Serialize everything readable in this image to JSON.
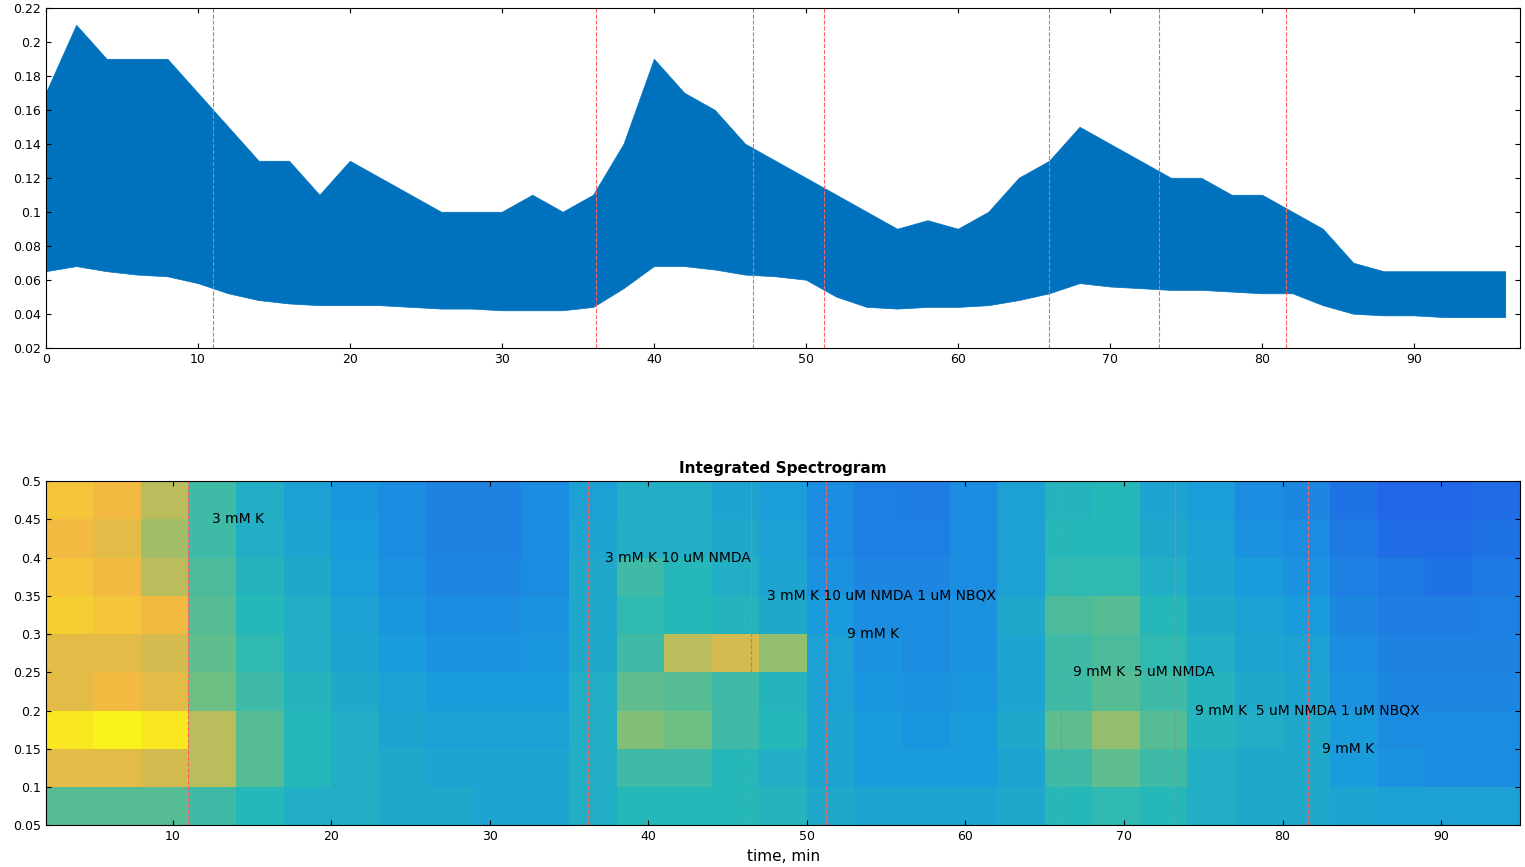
{
  "chart_data": [
    {
      "type": "range_area",
      "x": [
        0,
        2,
        4,
        6,
        8,
        10,
        12,
        14,
        16,
        18,
        20,
        22,
        24,
        26,
        28,
        30,
        32,
        34,
        36,
        38,
        40,
        42,
        44,
        46,
        48,
        50,
        52,
        54,
        56,
        58,
        60,
        62,
        64,
        66,
        68,
        70,
        72,
        74,
        76,
        78,
        80,
        82,
        84,
        86,
        88,
        90,
        92,
        94,
        96
      ],
      "upper": [
        0.17,
        0.21,
        0.19,
        0.19,
        0.19,
        0.17,
        0.15,
        0.13,
        0.13,
        0.11,
        0.13,
        0.12,
        0.11,
        0.1,
        0.1,
        0.1,
        0.11,
        0.1,
        0.11,
        0.14,
        0.19,
        0.17,
        0.16,
        0.14,
        0.13,
        0.12,
        0.11,
        0.1,
        0.09,
        0.095,
        0.09,
        0.1,
        0.12,
        0.13,
        0.15,
        0.14,
        0.13,
        0.12,
        0.12,
        0.11,
        0.11,
        0.1,
        0.09,
        0.07,
        0.065,
        0.065,
        0.065,
        0.065,
        0.065
      ],
      "lower": [
        0.065,
        0.068,
        0.065,
        0.063,
        0.062,
        0.058,
        0.052,
        0.048,
        0.046,
        0.045,
        0.045,
        0.045,
        0.044,
        0.043,
        0.043,
        0.042,
        0.042,
        0.042,
        0.044,
        0.055,
        0.068,
        0.068,
        0.066,
        0.063,
        0.062,
        0.06,
        0.05,
        0.044,
        0.043,
        0.044,
        0.044,
        0.045,
        0.048,
        0.052,
        0.058,
        0.056,
        0.055,
        0.054,
        0.054,
        0.053,
        0.052,
        0.052,
        0.045,
        0.04,
        0.039,
        0.039,
        0.038,
        0.038,
        0.038
      ],
      "color": "#0072bd",
      "events": {
        "x": [
          11,
          36.2,
          46.5,
          51.2,
          66,
          73.2,
          81.6
        ],
        "color": "#ff6060",
        "line_style": "dashed"
      },
      "xlim": [
        0,
        97
      ],
      "ylim": [
        0.02,
        0.22
      ],
      "xticks": [
        0,
        10,
        20,
        30,
        40,
        50,
        60,
        70,
        80,
        90
      ],
      "yticks": [
        0.02,
        0.04,
        0.06,
        0.08,
        0.1,
        0.12,
        0.14,
        0.16,
        0.18,
        0.2,
        0.22
      ],
      "grid": false
    },
    {
      "type": "heatmap",
      "title": "Integrated Spectrogram",
      "x_label": "time, min",
      "x_edges": [
        2,
        5,
        8,
        11,
        14,
        17,
        20,
        23,
        26,
        29,
        32,
        35,
        38,
        41,
        44,
        47,
        50,
        53,
        56,
        59,
        62,
        65,
        68,
        71,
        74,
        77,
        80,
        83,
        86,
        89,
        92,
        95
      ],
      "y_edges": [
        0.05,
        0.1,
        0.15,
        0.2,
        0.25,
        0.3,
        0.35,
        0.4,
        0.45,
        0.5
      ],
      "cells": [
        [
          0.6,
          0.6,
          0.6,
          0.55,
          0.5,
          0.45,
          0.45,
          0.42,
          0.42,
          0.4,
          0.4,
          0.45,
          0.5,
          0.5,
          0.5,
          0.48,
          0.42,
          0.4,
          0.4,
          0.4,
          0.42,
          0.5,
          0.52,
          0.5,
          0.45,
          0.42,
          0.42,
          0.4,
          0.38,
          0.38,
          0.38
        ],
        [
          0.8,
          0.8,
          0.78,
          0.75,
          0.6,
          0.5,
          0.45,
          0.42,
          0.4,
          0.4,
          0.4,
          0.45,
          0.55,
          0.55,
          0.5,
          0.45,
          0.4,
          0.35,
          0.35,
          0.35,
          0.4,
          0.55,
          0.62,
          0.55,
          0.45,
          0.42,
          0.42,
          0.35,
          0.32,
          0.3,
          0.3
        ],
        [
          0.95,
          0.98,
          0.95,
          0.75,
          0.6,
          0.5,
          0.45,
          0.4,
          0.38,
          0.38,
          0.38,
          0.45,
          0.68,
          0.65,
          0.55,
          0.5,
          0.4,
          0.35,
          0.33,
          0.35,
          0.42,
          0.62,
          0.7,
          0.6,
          0.48,
          0.45,
          0.42,
          0.35,
          0.3,
          0.3,
          0.3
        ],
        [
          0.8,
          0.82,
          0.8,
          0.65,
          0.55,
          0.48,
          0.42,
          0.38,
          0.35,
          0.35,
          0.35,
          0.45,
          0.62,
          0.6,
          0.55,
          0.48,
          0.38,
          0.33,
          0.32,
          0.33,
          0.4,
          0.55,
          0.6,
          0.55,
          0.48,
          0.42,
          0.4,
          0.32,
          0.28,
          0.28,
          0.28
        ],
        [
          0.8,
          0.8,
          0.78,
          0.62,
          0.52,
          0.45,
          0.4,
          0.35,
          0.32,
          0.32,
          0.33,
          0.42,
          0.55,
          0.75,
          0.78,
          0.7,
          0.38,
          0.32,
          0.3,
          0.32,
          0.4,
          0.55,
          0.58,
          0.52,
          0.45,
          0.4,
          0.38,
          0.3,
          0.27,
          0.27,
          0.27
        ],
        [
          0.88,
          0.85,
          0.82,
          0.6,
          0.5,
          0.45,
          0.38,
          0.33,
          0.3,
          0.3,
          0.32,
          0.42,
          0.52,
          0.5,
          0.48,
          0.42,
          0.35,
          0.3,
          0.3,
          0.32,
          0.42,
          0.58,
          0.6,
          0.5,
          0.42,
          0.38,
          0.35,
          0.28,
          0.25,
          0.25,
          0.26
        ],
        [
          0.85,
          0.82,
          0.75,
          0.58,
          0.48,
          0.42,
          0.36,
          0.32,
          0.28,
          0.28,
          0.3,
          0.42,
          0.55,
          0.5,
          0.45,
          0.4,
          0.32,
          0.28,
          0.28,
          0.3,
          0.38,
          0.52,
          0.52,
          0.45,
          0.4,
          0.35,
          0.32,
          0.26,
          0.24,
          0.22,
          0.24
        ],
        [
          0.82,
          0.8,
          0.72,
          0.55,
          0.45,
          0.4,
          0.35,
          0.3,
          0.27,
          0.27,
          0.3,
          0.4,
          0.45,
          0.45,
          0.42,
          0.38,
          0.3,
          0.26,
          0.26,
          0.3,
          0.38,
          0.5,
          0.5,
          0.42,
          0.38,
          0.32,
          0.3,
          0.24,
          0.2,
          0.2,
          0.22
        ],
        [
          0.85,
          0.82,
          0.75,
          0.55,
          0.45,
          0.38,
          0.33,
          0.3,
          0.27,
          0.27,
          0.3,
          0.38,
          0.45,
          0.45,
          0.4,
          0.36,
          0.3,
          0.26,
          0.25,
          0.3,
          0.38,
          0.48,
          0.5,
          0.4,
          0.36,
          0.3,
          0.28,
          0.22,
          0.18,
          0.18,
          0.2
        ]
      ],
      "events": {
        "x": [
          11,
          36.2,
          46.5,
          51.2,
          66,
          73.2,
          81.6
        ],
        "color": "#ff6060",
        "line_style": "dashed"
      },
      "annotations": [
        {
          "text": "3 mM K",
          "x": 12.5,
          "y": 0.45
        },
        {
          "text": "3 mM K 10 uM NMDA",
          "x": 37.3,
          "y": 0.4
        },
        {
          "text": "3 mM K 10 uM NMDA 1 uM NBQX",
          "x": 47.5,
          "y": 0.35
        },
        {
          "text": "9 mM K",
          "x": 52.5,
          "y": 0.3
        },
        {
          "text": "9 mM K  5 uM NMDA",
          "x": 66.8,
          "y": 0.25
        },
        {
          "text": "9 mM K  5 uM NMDA 1 uM NBQX",
          "x": 74.5,
          "y": 0.2
        },
        {
          "text": "9 mM K",
          "x": 82.5,
          "y": 0.15
        }
      ],
      "xlim": [
        2,
        95
      ],
      "ylim": [
        0.05,
        0.5
      ],
      "xticks": [
        10,
        20,
        30,
        40,
        50,
        60,
        70,
        80,
        90
      ],
      "yticks": [
        0.05,
        0.1,
        0.15,
        0.2,
        0.25,
        0.3,
        0.35,
        0.4,
        0.45,
        0.5
      ],
      "grid": false
    }
  ]
}
